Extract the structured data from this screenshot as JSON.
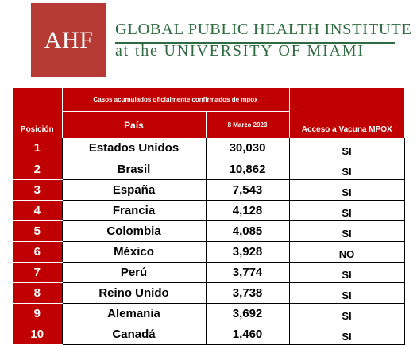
{
  "header": {
    "logo_text": "AHF",
    "institute_line1": "GLOBAL PUBLIC HEALTH INSTITUTE",
    "institute_line2": "at the UNIVERSITY OF MIAMI",
    "colors": {
      "logo_bg": "#b53b34",
      "institute_text": "#2e6b40"
    }
  },
  "table": {
    "colors": {
      "header_bg": "#c00000",
      "header_text": "#ffffff"
    },
    "group_header": "Casos acumulados oficialmente confirmados de mpox",
    "headers": {
      "position": "Posición",
      "country": "País",
      "date": "8 Marzo 2023",
      "vaccine": "Acceso a Vacuna MPOX"
    },
    "rows": [
      {
        "position": "1",
        "country": "Estados Unidos",
        "cases": "30,030",
        "vaccine": "SI"
      },
      {
        "position": "2",
        "country": "Brasil",
        "cases": "10,862",
        "vaccine": "SI"
      },
      {
        "position": "3",
        "country": "España",
        "cases": "7,543",
        "vaccine": "SI"
      },
      {
        "position": "4",
        "country": "Francia",
        "cases": "4,128",
        "vaccine": "SI"
      },
      {
        "position": "5",
        "country": "Colombia",
        "cases": "4,085",
        "vaccine": "SI"
      },
      {
        "position": "6",
        "country": "México",
        "cases": "3,928",
        "vaccine": "NO"
      },
      {
        "position": "7",
        "country": "Perú",
        "cases": "3,774",
        "vaccine": "SI"
      },
      {
        "position": "8",
        "country": "Reino Unido",
        "cases": "3,738",
        "vaccine": "SI"
      },
      {
        "position": "9",
        "country": "Alemania",
        "cases": "3,692",
        "vaccine": "SI"
      },
      {
        "position": "10",
        "country": "Canadá",
        "cases": "1,460",
        "vaccine": "SI"
      }
    ]
  }
}
